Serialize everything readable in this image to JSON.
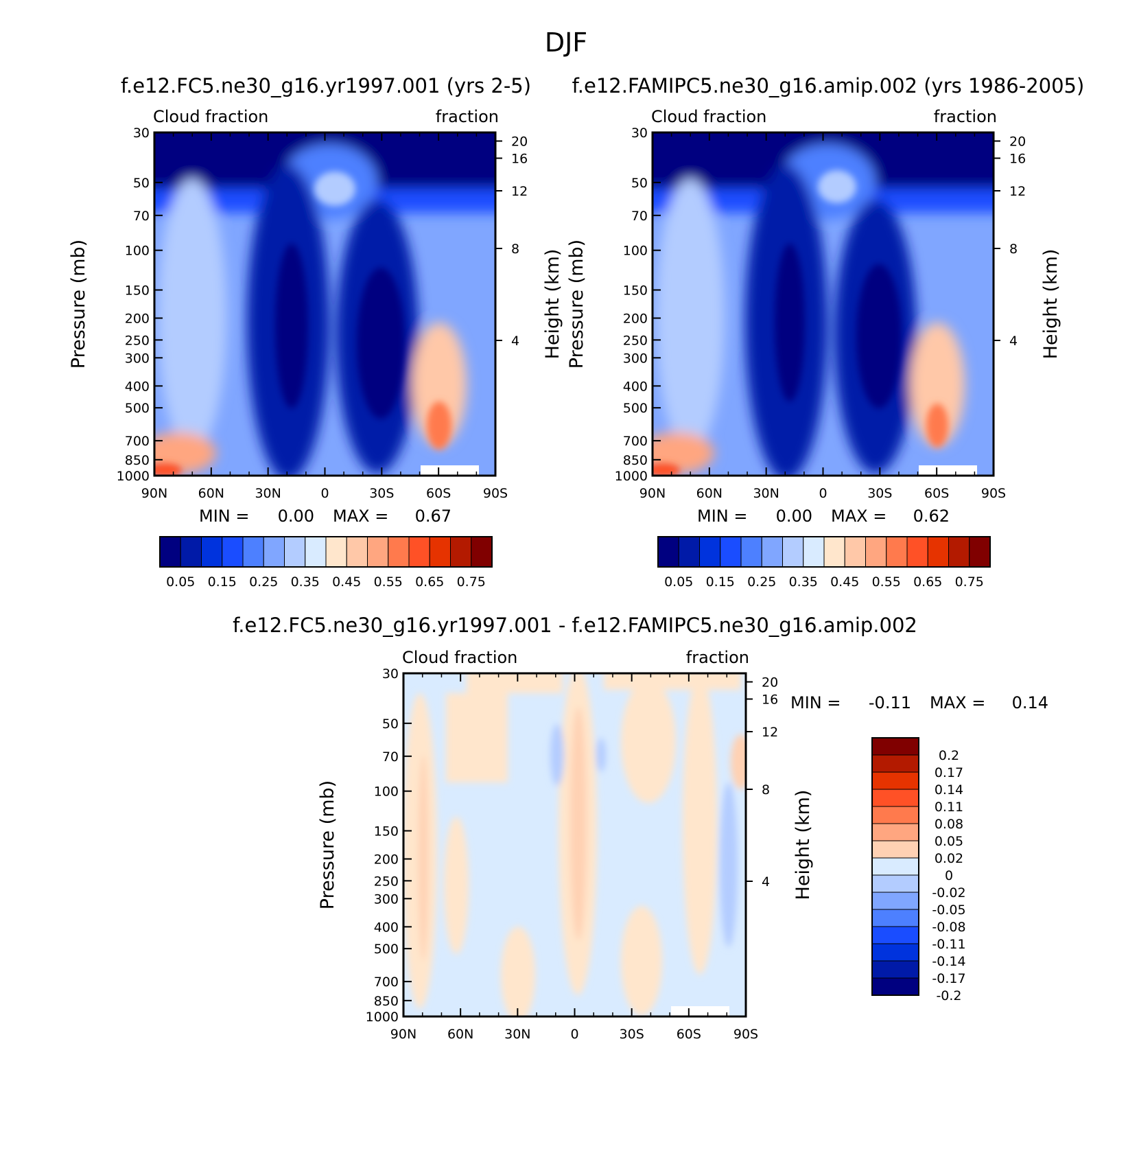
{
  "page_title": "DJF",
  "colors": {
    "abs_scale": [
      "#000080",
      "#001aa8",
      "#0033dd",
      "#1a4dff",
      "#4d80ff",
      "#80a6ff",
      "#b3ccff",
      "#d9ebff",
      "#ffe6cc",
      "#ffc8a8",
      "#ffa680",
      "#ff7a4d",
      "#ff5126",
      "#e63300",
      "#b31a00",
      "#800000"
    ],
    "diff_scale": [
      "#800000",
      "#b31a00",
      "#e63300",
      "#ff5126",
      "#ff7a4d",
      "#ffa680",
      "#ffd1b3",
      "#d9ebff",
      "#b3ccff",
      "#80a6ff",
      "#4d80ff",
      "#1a4dff",
      "#0033dd",
      "#001aa8",
      "#000080"
    ]
  },
  "chart_data": [
    {
      "type": "heatmap",
      "title": "f.e12.FC5.ne30_g16.yr1997.001 (yrs 2-5)",
      "left_label": "Cloud fraction",
      "right_label": "fraction",
      "xlabel": "",
      "ylabel": "Pressure (mb)",
      "ylabel_right": "Height (km)",
      "x_ticks": [
        "90N",
        "60N",
        "30N",
        "0",
        "30S",
        "60S",
        "90S"
      ],
      "x_values": [
        90,
        60,
        30,
        0,
        -30,
        -60,
        -90
      ],
      "y_ticks": [
        "30",
        "50",
        "70",
        "100",
        "150",
        "200",
        "250",
        "300",
        "400",
        "500",
        "700",
        "850",
        "1000"
      ],
      "y_values": [
        30,
        50,
        70,
        100,
        150,
        200,
        250,
        300,
        400,
        500,
        700,
        850,
        1000
      ],
      "ylim": [
        30,
        1000
      ],
      "y_scale": "log",
      "right_ticks": [
        "20",
        "16",
        "12",
        "8",
        "4"
      ],
      "min_label": "MIN =",
      "min_value": "0.00",
      "max_label": "MAX =",
      "max_value": "0.67",
      "colorbar_labels": [
        "0.05",
        "0.15",
        "0.25",
        "0.35",
        "0.45",
        "0.55",
        "0.65",
        "0.75"
      ],
      "colorbar_levels": [
        0.05,
        0.1,
        0.15,
        0.2,
        0.25,
        0.3,
        0.35,
        0.4,
        0.45,
        0.5,
        0.55,
        0.6,
        0.65,
        0.7,
        0.75
      ]
    },
    {
      "type": "heatmap",
      "title": "f.e12.FAMIPC5.ne30_g16.amip.002 (yrs 1986-2005)",
      "left_label": "Cloud fraction",
      "right_label": "fraction",
      "xlabel": "",
      "ylabel": "Pressure (mb)",
      "ylabel_right": "Height (km)",
      "x_ticks": [
        "90N",
        "60N",
        "30N",
        "0",
        "30S",
        "60S",
        "90S"
      ],
      "x_values": [
        90,
        60,
        30,
        0,
        -30,
        -60,
        -90
      ],
      "y_ticks": [
        "30",
        "50",
        "70",
        "100",
        "150",
        "200",
        "250",
        "300",
        "400",
        "500",
        "700",
        "850",
        "1000"
      ],
      "y_values": [
        30,
        50,
        70,
        100,
        150,
        200,
        250,
        300,
        400,
        500,
        700,
        850,
        1000
      ],
      "ylim": [
        30,
        1000
      ],
      "y_scale": "log",
      "right_ticks": [
        "20",
        "16",
        "12",
        "8",
        "4"
      ],
      "min_label": "MIN =",
      "min_value": "0.00",
      "max_label": "MAX =",
      "max_value": "0.62",
      "colorbar_labels": [
        "0.05",
        "0.15",
        "0.25",
        "0.35",
        "0.45",
        "0.55",
        "0.65",
        "0.75"
      ],
      "colorbar_levels": [
        0.05,
        0.1,
        0.15,
        0.2,
        0.25,
        0.3,
        0.35,
        0.4,
        0.45,
        0.5,
        0.55,
        0.6,
        0.65,
        0.7,
        0.75
      ]
    },
    {
      "type": "heatmap",
      "title": "f.e12.FC5.ne30_g16.yr1997.001 - f.e12.FAMIPC5.ne30_g16.amip.002",
      "left_label": "Cloud fraction",
      "right_label": "fraction",
      "xlabel": "",
      "ylabel": "Pressure (mb)",
      "ylabel_right": "Height (km)",
      "x_ticks": [
        "90N",
        "60N",
        "30N",
        "0",
        "30S",
        "60S",
        "90S"
      ],
      "x_values": [
        90,
        60,
        30,
        0,
        -30,
        -60,
        -90
      ],
      "y_ticks": [
        "30",
        "50",
        "70",
        "100",
        "150",
        "200",
        "250",
        "300",
        "400",
        "500",
        "700",
        "850",
        "1000"
      ],
      "y_values": [
        30,
        50,
        70,
        100,
        150,
        200,
        250,
        300,
        400,
        500,
        700,
        850,
        1000
      ],
      "ylim": [
        30,
        1000
      ],
      "y_scale": "log",
      "right_ticks": [
        "20",
        "16",
        "12",
        "8",
        "4"
      ],
      "min_label": "MIN =",
      "min_value": "-0.11",
      "max_label": "MAX =",
      "max_value": "0.14",
      "colorbar_labels": [
        "0.2",
        "0.17",
        "0.14",
        "0.11",
        "0.08",
        "0.05",
        "0.02",
        "0",
        "-0.02",
        "-0.05",
        "-0.08",
        "-0.11",
        "-0.14",
        "-0.17",
        "-0.2"
      ],
      "colorbar_levels": [
        0.2,
        0.17,
        0.14,
        0.11,
        0.08,
        0.05,
        0.02,
        0,
        -0.02,
        -0.05,
        -0.08,
        -0.11,
        -0.14,
        -0.17,
        -0.2
      ]
    }
  ]
}
